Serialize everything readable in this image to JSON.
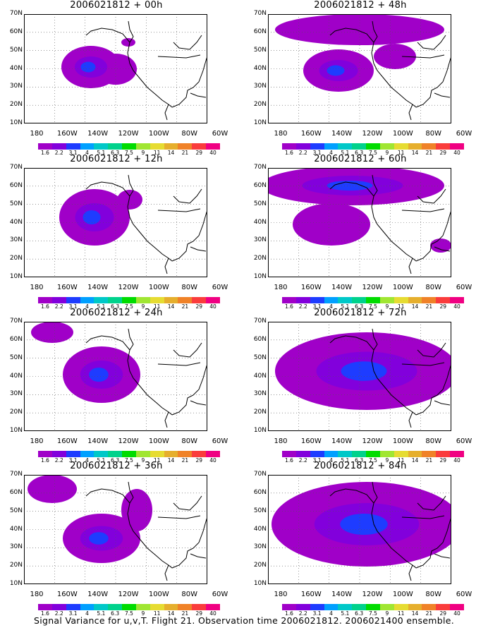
{
  "panels": [
    {
      "title": "2006021812 + 00h"
    },
    {
      "title": "2006021812 + 48h"
    },
    {
      "title": "2006021812 + 12h"
    },
    {
      "title": "2006021812 + 60h"
    },
    {
      "title": "2006021812 + 24h"
    },
    {
      "title": "2006021812 + 72h"
    },
    {
      "title": "2006021812 + 36h"
    },
    {
      "title": "2006021812 + 84h"
    }
  ],
  "lat_labels": [
    "70N",
    "60N",
    "50N",
    "40N",
    "30N",
    "20N",
    "10N"
  ],
  "lon_labels": [
    "180",
    "160W",
    "140W",
    "120W",
    "100W",
    "80W",
    "60W"
  ],
  "colorbar": {
    "labels": [
      "1.6",
      "2.2",
      "3.1",
      "4",
      "5.1",
      "6.3",
      "7.5",
      "9",
      "11",
      "14",
      "21",
      "29",
      "40"
    ],
    "colors": [
      "#a000c8",
      "#8200dc",
      "#1e3cff",
      "#00a0ff",
      "#00c8c8",
      "#00d28c",
      "#00dc00",
      "#a0e632",
      "#e6dc32",
      "#e6af2d",
      "#f08228",
      "#fa3c3c",
      "#f00082"
    ]
  },
  "footer": "Signal Variance for u,v,T. Flight 21. Observation time 2006021812. 2006021400 ensemble."
}
